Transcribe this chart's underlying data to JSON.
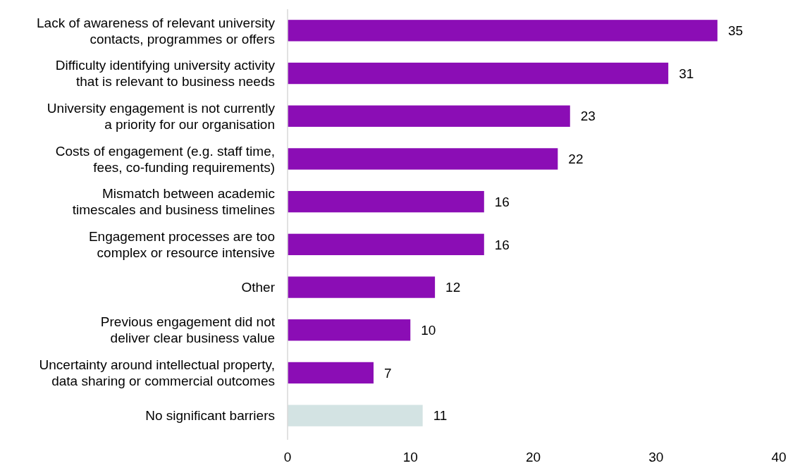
{
  "chart_data": {
    "type": "bar",
    "orientation": "horizontal",
    "categories": [
      "Lack of awareness of relevant university\ncontacts, programmes or offers",
      "Difficulty identifying university activity\nthat is relevant to business needs",
      "University engagement is not currently\na priority for our organisation",
      "Costs of engagement (e.g. staff time,\nfees, co-funding requirements)",
      "Mismatch between academic\ntimescales and business timelines",
      "Engagement processes are too\ncomplex or resource intensive",
      "Other",
      "Previous engagement did not\ndeliver clear business value",
      "Uncertainty around intellectual property,\ndata sharing or commercial outcomes",
      "No significant barriers"
    ],
    "values": [
      35,
      31,
      23,
      22,
      16,
      16,
      12,
      10,
      7,
      11
    ],
    "colors": [
      "#8b0db5",
      "#8b0db5",
      "#8b0db5",
      "#8b0db5",
      "#8b0db5",
      "#8b0db5",
      "#8b0db5",
      "#8b0db5",
      "#8b0db5",
      "#d3e3e3"
    ],
    "xlim": [
      0,
      40
    ],
    "xticks": [
      0,
      10,
      20,
      30,
      40
    ],
    "data_labels": true,
    "grid": false
  }
}
